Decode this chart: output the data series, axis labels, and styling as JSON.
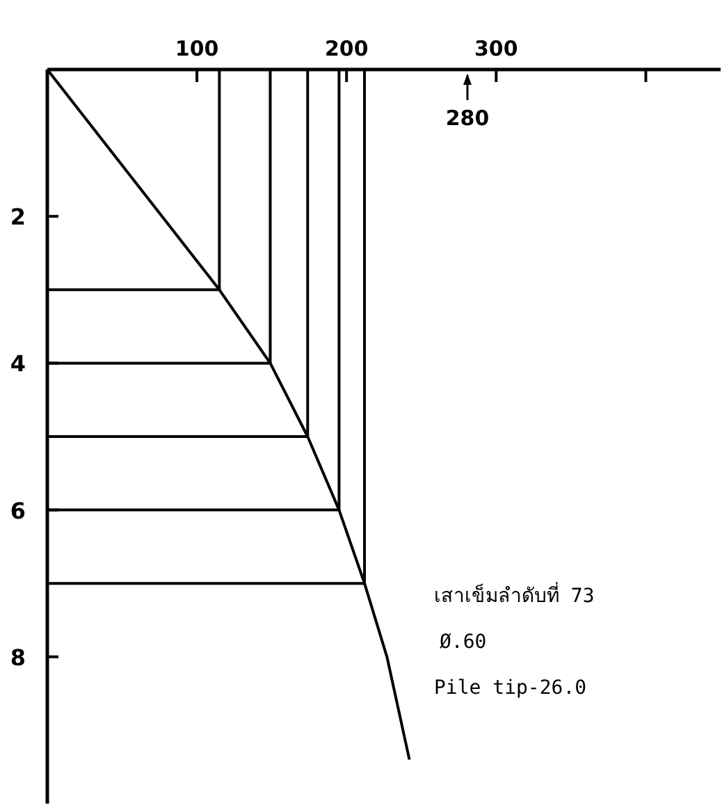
{
  "chart_data": {
    "type": "line",
    "series": [
      {
        "color": "#000000",
        "x": [
          0,
          115,
          149,
          174,
          195,
          212,
          227,
          242
        ],
        "values": [
          0,
          3,
          4,
          5,
          6,
          7,
          8,
          9.4
        ]
      },
      {
        "color": "#000000",
        "x": [
          0,
          115,
          115
        ],
        "values": [
          3,
          3,
          0
        ]
      },
      {
        "color": "#000000",
        "x": [
          0,
          149,
          149
        ],
        "values": [
          4,
          4,
          0
        ]
      },
      {
        "color": "#000000",
        "x": [
          0,
          174,
          174
        ],
        "values": [
          5,
          5,
          0
        ]
      },
      {
        "color": "#000000",
        "x": [
          0,
          195,
          195
        ],
        "values": [
          6,
          6,
          0
        ]
      },
      {
        "color": "#000000",
        "x": [
          0,
          212,
          212
        ],
        "values": [
          7,
          7,
          0
        ]
      }
    ],
    "xlim": [
      0,
      450
    ],
    "ylim": [
      10,
      0
    ],
    "xticks": [
      100,
      200,
      300,
      {
        "value": 400,
        "label": null
      }
    ],
    "yticks": [
      2,
      4,
      6,
      8
    ],
    "annotations": [
      "280",
      "เสาเข็มลำดับที่ 73",
      "Ø.60",
      "Pile tip-26.0"
    ],
    "grid": false,
    "marker": "none",
    "line_style": "solid"
  }
}
